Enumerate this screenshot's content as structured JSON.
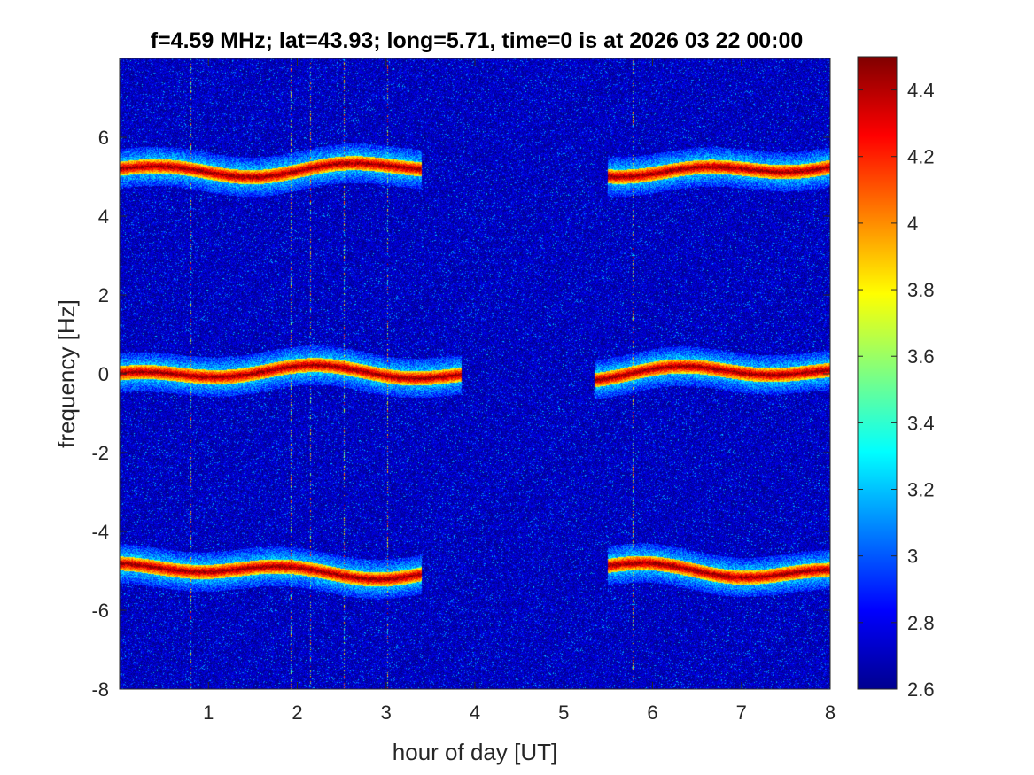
{
  "chart_data": {
    "type": "heatmap",
    "title": "f=4.59 MHz;  lat=43.93; long=5.71, time=0 is at 2026 03 22 00:00",
    "xlabel": "hour of day [UT]",
    "ylabel": "frequency [Hz]",
    "xlim": [
      0,
      8
    ],
    "ylim": [
      -8,
      8
    ],
    "xticks": [
      1,
      2,
      3,
      4,
      5,
      6,
      7,
      8
    ],
    "yticks": [
      -8,
      -6,
      -4,
      -2,
      0,
      2,
      4,
      6
    ],
    "colorbar": {
      "colormap": "jet",
      "clim": [
        2.6,
        4.5
      ],
      "ticks": [
        2.6,
        2.8,
        3,
        3.2,
        3.4,
        3.6,
        3.8,
        4,
        4.2,
        4.4
      ]
    },
    "background_level": 2.7,
    "traces": [
      {
        "offset": 5.2,
        "segments": [
          [
            0.0,
            3.4
          ],
          [
            5.5,
            8.0
          ]
        ]
      },
      {
        "offset": 0.0,
        "segments": [
          [
            0.0,
            3.85
          ],
          [
            5.35,
            8.0
          ]
        ]
      },
      {
        "offset": -5.0,
        "segments": [
          [
            0.0,
            3.4
          ],
          [
            5.5,
            8.0
          ]
        ]
      }
    ],
    "vertical_interference_hours": [
      0.8,
      1.93,
      2.15,
      2.53,
      3.02,
      5.78
    ],
    "trace_peak_level": 4.5
  }
}
